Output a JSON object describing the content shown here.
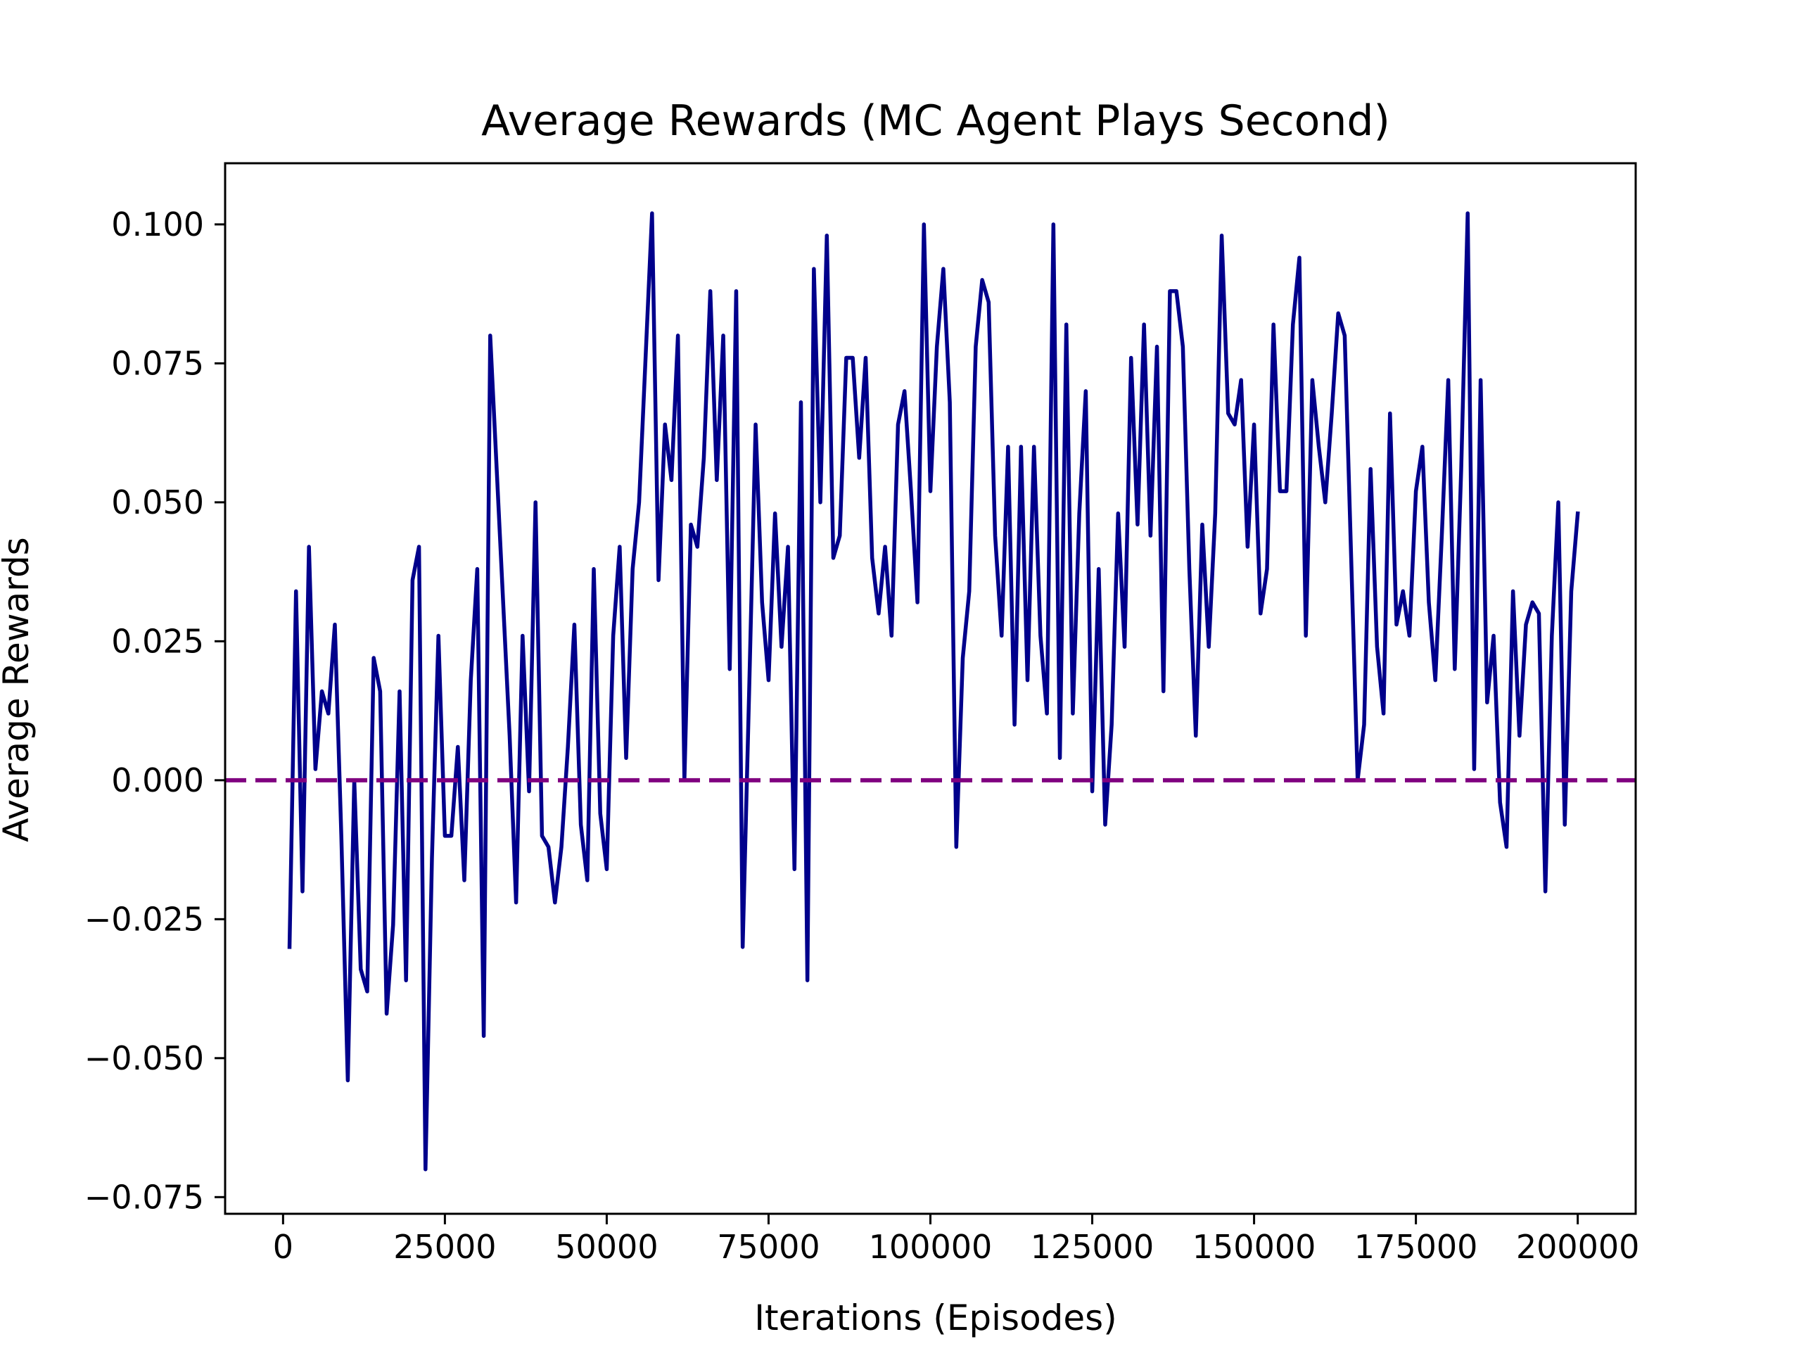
{
  "chart_data": {
    "type": "line",
    "title": "Average Rewards (MC Agent Plays Second)",
    "xlabel": "Iterations (Episodes)",
    "ylabel": "Average Rewards",
    "xlim": [
      -8950,
      208950
    ],
    "ylim": [
      -0.078,
      0.111
    ],
    "xticks": [
      0,
      25000,
      50000,
      75000,
      100000,
      125000,
      150000,
      175000,
      200000
    ],
    "xtick_labels": [
      "0",
      "25000",
      "50000",
      "75000",
      "100000",
      "125000",
      "150000",
      "175000",
      "200000"
    ],
    "yticks": [
      -0.075,
      -0.05,
      -0.025,
      0.0,
      0.025,
      0.05,
      0.075,
      0.1
    ],
    "ytick_labels": [
      "−0.075",
      "−0.050",
      "−0.025",
      "0.000",
      "0.025",
      "0.050",
      "0.075",
      "0.100"
    ],
    "grid": false,
    "legend": null,
    "series": [
      {
        "color": "#00008b",
        "style": "solid",
        "x": [
          1000,
          2000,
          3000,
          4000,
          5000,
          6000,
          7000,
          8000,
          9000,
          10000,
          11000,
          12000,
          13000,
          14000,
          15000,
          16000,
          17000,
          18000,
          19000,
          20000,
          21000,
          22000,
          23000,
          24000,
          25000,
          26000,
          27000,
          28000,
          29000,
          30000,
          31000,
          32000,
          33000,
          34000,
          35000,
          36000,
          37000,
          38000,
          39000,
          40000,
          41000,
          42000,
          43000,
          44000,
          45000,
          46000,
          47000,
          48000,
          49000,
          50000,
          51000,
          52000,
          53000,
          54000,
          55000,
          56000,
          57000,
          58000,
          59000,
          60000,
          61000,
          62000,
          63000,
          64000,
          65000,
          66000,
          67000,
          68000,
          69000,
          70000,
          71000,
          72000,
          73000,
          74000,
          75000,
          76000,
          77000,
          78000,
          79000,
          80000,
          81000,
          82000,
          83000,
          84000,
          85000,
          86000,
          87000,
          88000,
          89000,
          90000,
          91000,
          92000,
          93000,
          94000,
          95000,
          96000,
          97000,
          98000,
          99000,
          100000,
          101000,
          102000,
          103000,
          104000,
          105000,
          106000,
          107000,
          108000,
          109000,
          110000,
          111000,
          112000,
          113000,
          114000,
          115000,
          116000,
          117000,
          118000,
          119000,
          120000,
          121000,
          122000,
          123000,
          124000,
          125000,
          126000,
          127000,
          128000,
          129000,
          130000,
          131000,
          132000,
          133000,
          134000,
          135000,
          136000,
          137000,
          138000,
          139000,
          140000,
          141000,
          142000,
          143000,
          144000,
          145000,
          146000,
          147000,
          148000,
          149000,
          150000,
          151000,
          152000,
          153000,
          154000,
          155000,
          156000,
          157000,
          158000,
          159000,
          160000,
          161000,
          162000,
          163000,
          164000,
          165000,
          166000,
          167000,
          168000,
          169000,
          170000,
          171000,
          172000,
          173000,
          174000,
          175000,
          176000,
          177000,
          178000,
          179000,
          180000,
          181000,
          182000,
          183000,
          184000,
          185000,
          186000,
          187000,
          188000,
          189000,
          190000,
          191000,
          192000,
          193000,
          194000,
          195000,
          196000,
          197000,
          198000,
          199000,
          200000
        ],
        "y": [
          -0.03,
          0.034,
          -0.02,
          0.042,
          0.002,
          0.016,
          0.012,
          0.028,
          -0.01,
          -0.054,
          0.0,
          -0.034,
          -0.038,
          0.022,
          0.016,
          -0.042,
          -0.026,
          0.016,
          -0.036,
          0.036,
          0.042,
          -0.07,
          -0.014,
          0.026,
          -0.01,
          -0.01,
          0.006,
          -0.018,
          0.018,
          0.038,
          -0.046,
          0.08,
          0.056,
          0.032,
          0.008,
          -0.022,
          0.026,
          -0.002,
          0.05,
          -0.01,
          -0.012,
          -0.022,
          -0.012,
          0.006,
          0.028,
          -0.008,
          -0.018,
          0.038,
          -0.006,
          -0.016,
          0.026,
          0.042,
          0.004,
          0.038,
          0.05,
          0.076,
          0.102,
          0.036,
          0.064,
          0.054,
          0.08,
          0.0,
          0.046,
          0.042,
          0.058,
          0.088,
          0.054,
          0.08,
          0.02,
          0.088,
          -0.03,
          0.016,
          0.064,
          0.032,
          0.018,
          0.048,
          0.024,
          0.042,
          -0.016,
          0.068,
          -0.036,
          0.092,
          0.05,
          0.098,
          0.04,
          0.044,
          0.076,
          0.076,
          0.058,
          0.076,
          0.04,
          0.03,
          0.042,
          0.026,
          0.064,
          0.07,
          0.052,
          0.032,
          0.1,
          0.052,
          0.078,
          0.092,
          0.068,
          -0.012,
          0.022,
          0.034,
          0.078,
          0.09,
          0.086,
          0.044,
          0.026,
          0.06,
          0.01,
          0.06,
          0.018,
          0.06,
          0.026,
          0.012,
          0.1,
          0.004,
          0.082,
          0.012,
          0.048,
          0.07,
          -0.002,
          0.038,
          -0.008,
          0.01,
          0.048,
          0.024,
          0.076,
          0.046,
          0.082,
          0.044,
          0.078,
          0.016,
          0.088,
          0.088,
          0.078,
          0.038,
          0.008,
          0.046,
          0.024,
          0.048,
          0.098,
          0.066,
          0.064,
          0.072,
          0.042,
          0.064,
          0.03,
          0.038,
          0.082,
          0.052,
          0.052,
          0.082,
          0.094,
          0.026,
          0.072,
          0.06,
          0.05,
          0.066,
          0.084,
          0.08,
          0.04,
          0.0,
          0.01,
          0.056,
          0.024,
          0.012,
          0.066,
          0.028,
          0.034,
          0.026,
          0.052,
          0.06,
          0.032,
          0.018,
          0.044,
          0.072,
          0.02,
          0.056,
          0.102,
          0.002,
          0.072,
          0.014,
          0.026,
          -0.004,
          -0.012,
          0.034,
          0.008,
          0.028,
          0.032,
          0.03,
          -0.02,
          0.026,
          0.05,
          -0.008,
          0.034,
          0.048
        ]
      },
      {
        "color": "#800080",
        "style": "dashed",
        "y_constant": 0.0
      }
    ]
  }
}
